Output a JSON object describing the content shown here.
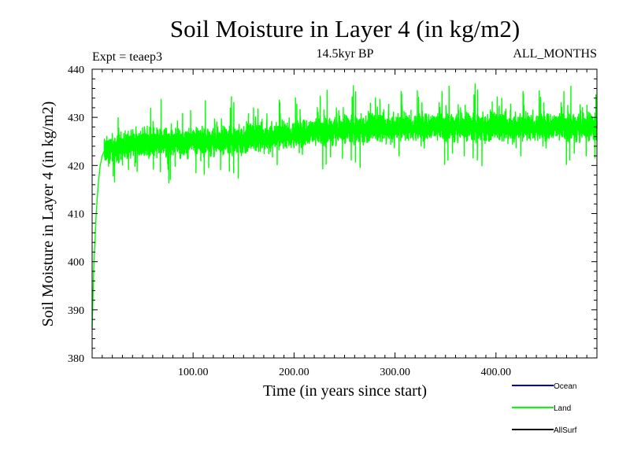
{
  "chart_data": {
    "type": "line",
    "title": "Soil Moisture in Layer 4 (in kg/m2)",
    "subtitle_left": "Expt = teaep3",
    "subtitle_center": "14.5kyr BP",
    "subtitle_right": "ALL_MONTHS",
    "xlabel": "Time (in years since start)",
    "ylabel": "Soil Moisture in Layer 4 (in kg/m2)",
    "xlim": [
      0,
      500
    ],
    "ylim": [
      380,
      440
    ],
    "x_ticks": [
      100,
      200,
      300,
      400
    ],
    "x_tick_labels": [
      "100.00",
      "200.00",
      "300.00",
      "400.00"
    ],
    "y_ticks": [
      380,
      390,
      400,
      410,
      420,
      430,
      440
    ],
    "y_tick_labels": [
      "380",
      "390",
      "400",
      "410",
      "420",
      "430",
      "440"
    ],
    "series": [
      {
        "name": "Land",
        "color": "#00ff00",
        "spinup_x": [
          0,
          0.5,
          1,
          1.5,
          2,
          3,
          4,
          5,
          6,
          7,
          8,
          9,
          10,
          12
        ],
        "spinup_y": [
          386,
          390,
          394,
          398,
          401,
          405,
          410,
          413,
          416,
          418,
          420,
          421,
          422,
          423
        ],
        "trend_x": [
          12,
          20,
          40,
          60,
          80,
          100,
          120,
          150,
          200,
          250,
          300,
          350,
          400,
          450,
          500
        ],
        "trend_y": [
          423,
          423.5,
          424.5,
          425,
          425,
          425,
          425,
          425.5,
          426.5,
          427.5,
          428,
          428,
          428,
          428,
          428
        ]
      },
      {
        "name": "Ocean",
        "color": "#0000cc"
      },
      {
        "name": "AllSurf",
        "color": "#000000"
      }
    ],
    "legend": [
      {
        "label": "Ocean",
        "color": "#0000cc"
      },
      {
        "label": "Land",
        "color": "#00ff00"
      },
      {
        "label": "AllSurf",
        "color": "#000000"
      }
    ]
  }
}
